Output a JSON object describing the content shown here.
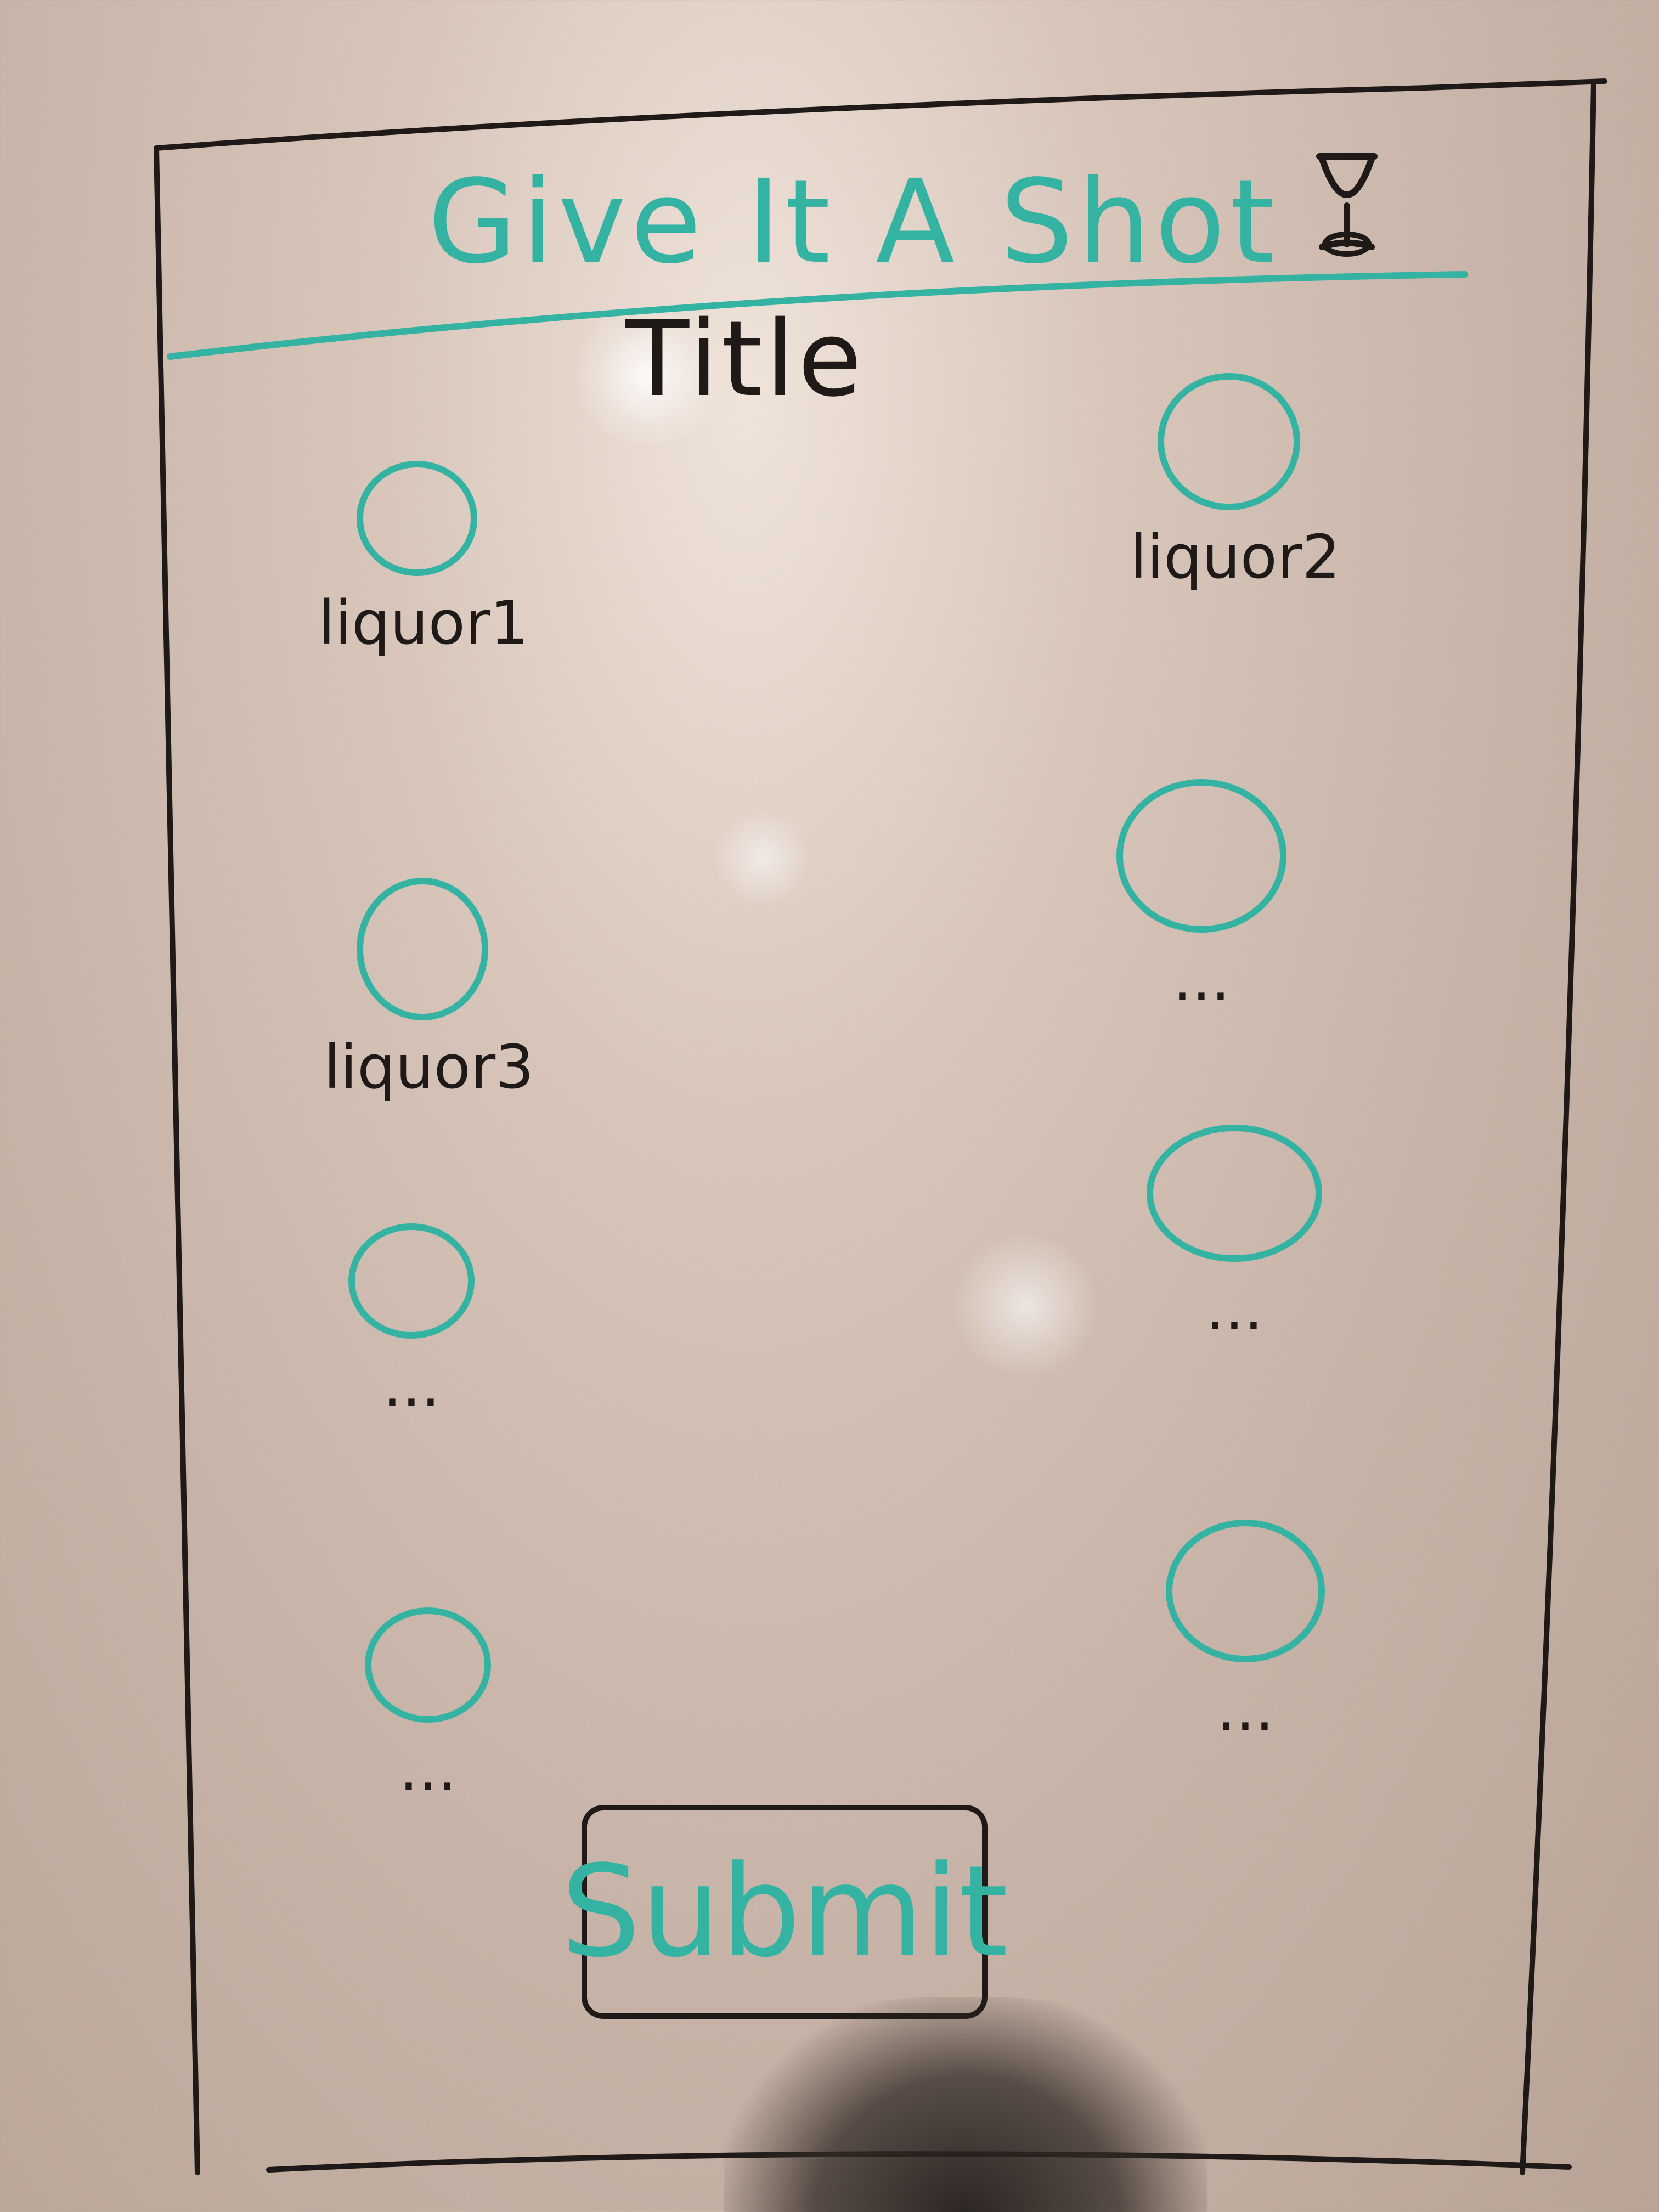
{
  "app": {
    "title": "Give It A Shot",
    "icon": "cocktail-glass-icon"
  },
  "title_label": "Title",
  "options": [
    {
      "label": "liquor1"
    },
    {
      "label": "liquor2"
    },
    {
      "label": "liquor3"
    },
    {
      "label": "..."
    },
    {
      "label": "..."
    },
    {
      "label": "..."
    },
    {
      "label": "..."
    },
    {
      "label": "..."
    }
  ],
  "submit_label": "Submit",
  "colors": {
    "marker_teal": "#35b3a2",
    "marker_black": "#1f1a17",
    "whiteboard": "#d8c6bb"
  }
}
